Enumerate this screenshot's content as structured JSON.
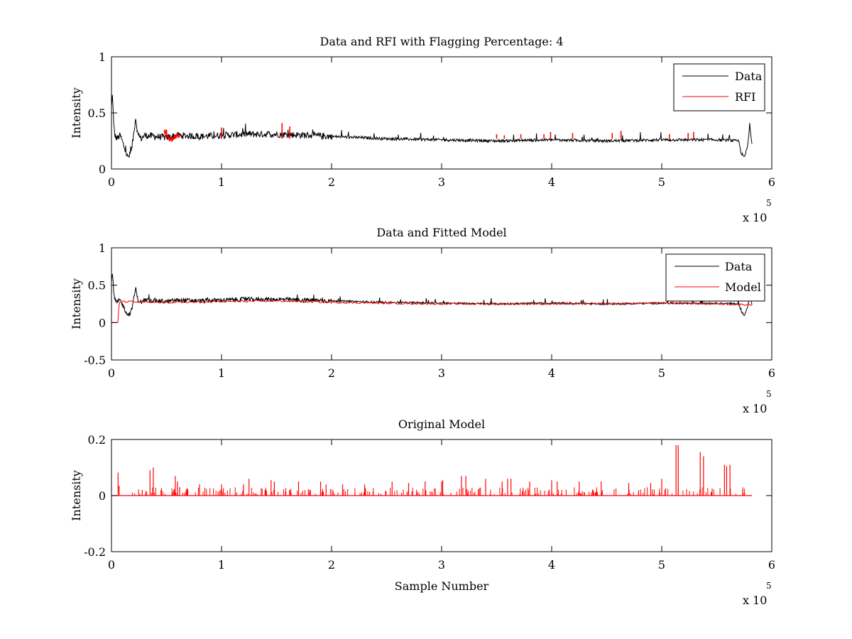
{
  "chart_data": [
    {
      "type": "line",
      "title": "Data and RFI with Flagging Percentage: 4",
      "xlabel": "",
      "ylabel": "Intensity",
      "xlim": [
        0,
        6
      ],
      "ylim": [
        0,
        1
      ],
      "xticks": [
        "0",
        "1",
        "2",
        "3",
        "4",
        "5",
        "6"
      ],
      "yticks": [
        "0",
        "0.5",
        "1"
      ],
      "x_multiplier": "x 10",
      "x_multiplier_exponent": "5",
      "legend_position": "top-right",
      "grid": false,
      "series": [
        {
          "name": "Data",
          "color": "#000000",
          "x": [
            0,
            0.01,
            0.02,
            0.03,
            0.05,
            0.08,
            0.12,
            0.15,
            0.18,
            0.2,
            0.22,
            0.24,
            0.27,
            0.3,
            0.4,
            0.5,
            0.6,
            0.8,
            1.0,
            1.2,
            1.5,
            1.8,
            2.0,
            2.5,
            3.0,
            3.5,
            4.0,
            4.5,
            5.0,
            5.5,
            5.7,
            5.72,
            5.75,
            5.78,
            5.8,
            5.82
          ],
          "y": [
            0.55,
            0.67,
            0.4,
            0.3,
            0.27,
            0.3,
            0.18,
            0.1,
            0.15,
            0.3,
            0.46,
            0.3,
            0.27,
            0.3,
            0.29,
            0.28,
            0.3,
            0.29,
            0.3,
            0.31,
            0.31,
            0.3,
            0.29,
            0.27,
            0.26,
            0.25,
            0.26,
            0.25,
            0.26,
            0.26,
            0.25,
            0.15,
            0.1,
            0.2,
            0.38,
            0.23
          ]
        },
        {
          "name": "RFI",
          "color": "#ff0000",
          "x": [
            0.5,
            0.52,
            0.55,
            0.58,
            1.0,
            1.55,
            1.62,
            3.5,
            3.57,
            3.72,
            3.93,
            3.99,
            4.19,
            4.55,
            4.63,
            5.07,
            5.24,
            5.29
          ],
          "y": [
            0.33,
            0.28,
            0.26,
            0.3,
            0.37,
            0.41,
            0.38,
            0.31,
            0.3,
            0.31,
            0.31,
            0.33,
            0.32,
            0.32,
            0.34,
            0.31,
            0.32,
            0.33
          ]
        }
      ]
    },
    {
      "type": "line",
      "title": "Data and Fitted Model",
      "xlabel": "",
      "ylabel": "Intensity",
      "xlim": [
        0,
        6
      ],
      "ylim": [
        -0.5,
        1
      ],
      "xticks": [
        "0",
        "1",
        "2",
        "3",
        "4",
        "5",
        "6"
      ],
      "yticks": [
        "-0.5",
        "0",
        "0.5",
        "1"
      ],
      "x_multiplier": "x 10",
      "x_multiplier_exponent": "5",
      "legend_position": "top-right",
      "grid": false,
      "series": [
        {
          "name": "Data",
          "color": "#000000",
          "x": [
            0,
            0.01,
            0.02,
            0.03,
            0.05,
            0.08,
            0.12,
            0.15,
            0.18,
            0.2,
            0.22,
            0.24,
            0.27,
            0.3,
            0.4,
            0.5,
            0.6,
            0.8,
            1.0,
            1.2,
            1.5,
            1.8,
            2.0,
            2.5,
            3.0,
            3.5,
            4.0,
            4.5,
            5.0,
            5.5,
            5.7,
            5.72,
            5.75,
            5.78,
            5.8,
            5.82
          ],
          "y": [
            0.55,
            0.67,
            0.4,
            0.3,
            0.27,
            0.3,
            0.18,
            0.1,
            0.15,
            0.3,
            0.46,
            0.3,
            0.27,
            0.3,
            0.29,
            0.28,
            0.3,
            0.29,
            0.3,
            0.31,
            0.31,
            0.3,
            0.29,
            0.27,
            0.26,
            0.25,
            0.26,
            0.25,
            0.26,
            0.26,
            0.25,
            0.15,
            0.1,
            0.2,
            0.38,
            0.23
          ]
        },
        {
          "name": "Model",
          "color": "#ff0000",
          "x": [
            0,
            0.06,
            0.07,
            0.1,
            0.5,
            1.0,
            1.5,
            2.0,
            2.5,
            3.0,
            3.5,
            4.0,
            4.5,
            5.0,
            5.5,
            5.82
          ],
          "y": [
            0,
            0,
            0.28,
            0.28,
            0.27,
            0.28,
            0.29,
            0.27,
            0.26,
            0.25,
            0.25,
            0.25,
            0.25,
            0.26,
            0.25,
            0.24
          ]
        }
      ]
    },
    {
      "type": "line",
      "title": "Original Model",
      "xlabel": "Sample Number",
      "ylabel": "Intensity",
      "xlim": [
        0,
        6
      ],
      "ylim": [
        -0.2,
        0.2
      ],
      "xticks": [
        "0",
        "1",
        "2",
        "3",
        "4",
        "5",
        "6"
      ],
      "yticks": [
        "-0.2",
        "0",
        "0.2"
      ],
      "x_multiplier": "x 10",
      "x_multiplier_exponent": "5",
      "grid": false,
      "series": [
        {
          "color": "#ff0000",
          "baseline": [
            0,
            5.82
          ],
          "spikes_x": [
            0.06,
            0.07,
            0.28,
            0.35,
            0.38,
            0.45,
            0.58,
            0.6,
            0.62,
            0.8,
            1.0,
            1.2,
            1.25,
            1.45,
            1.48,
            1.7,
            1.9,
            1.95,
            2.1,
            2.3,
            2.55,
            2.7,
            2.85,
            3.0,
            3.01,
            3.18,
            3.22,
            3.4,
            3.55,
            3.6,
            3.63,
            3.8,
            4.0,
            4.05,
            4.25,
            4.45,
            4.7,
            4.9,
            5.0,
            5.13,
            5.15,
            5.35,
            5.38,
            5.57,
            5.59,
            5.62,
            5.75
          ],
          "spikes_y": [
            0.082,
            0.035,
            0.02,
            0.09,
            0.1,
            0.02,
            0.07,
            0.05,
            0.03,
            0.04,
            0.04,
            0.04,
            0.06,
            0.055,
            0.05,
            0.05,
            0.05,
            0.04,
            0.04,
            0.04,
            0.05,
            0.045,
            0.05,
            0.05,
            0.055,
            0.07,
            0.07,
            0.06,
            0.05,
            0.06,
            0.06,
            0.05,
            0.055,
            0.05,
            0.05,
            0.05,
            0.045,
            0.045,
            0.06,
            0.18,
            0.18,
            0.155,
            0.14,
            0.11,
            0.105,
            0.11,
            0.01
          ]
        }
      ]
    }
  ]
}
